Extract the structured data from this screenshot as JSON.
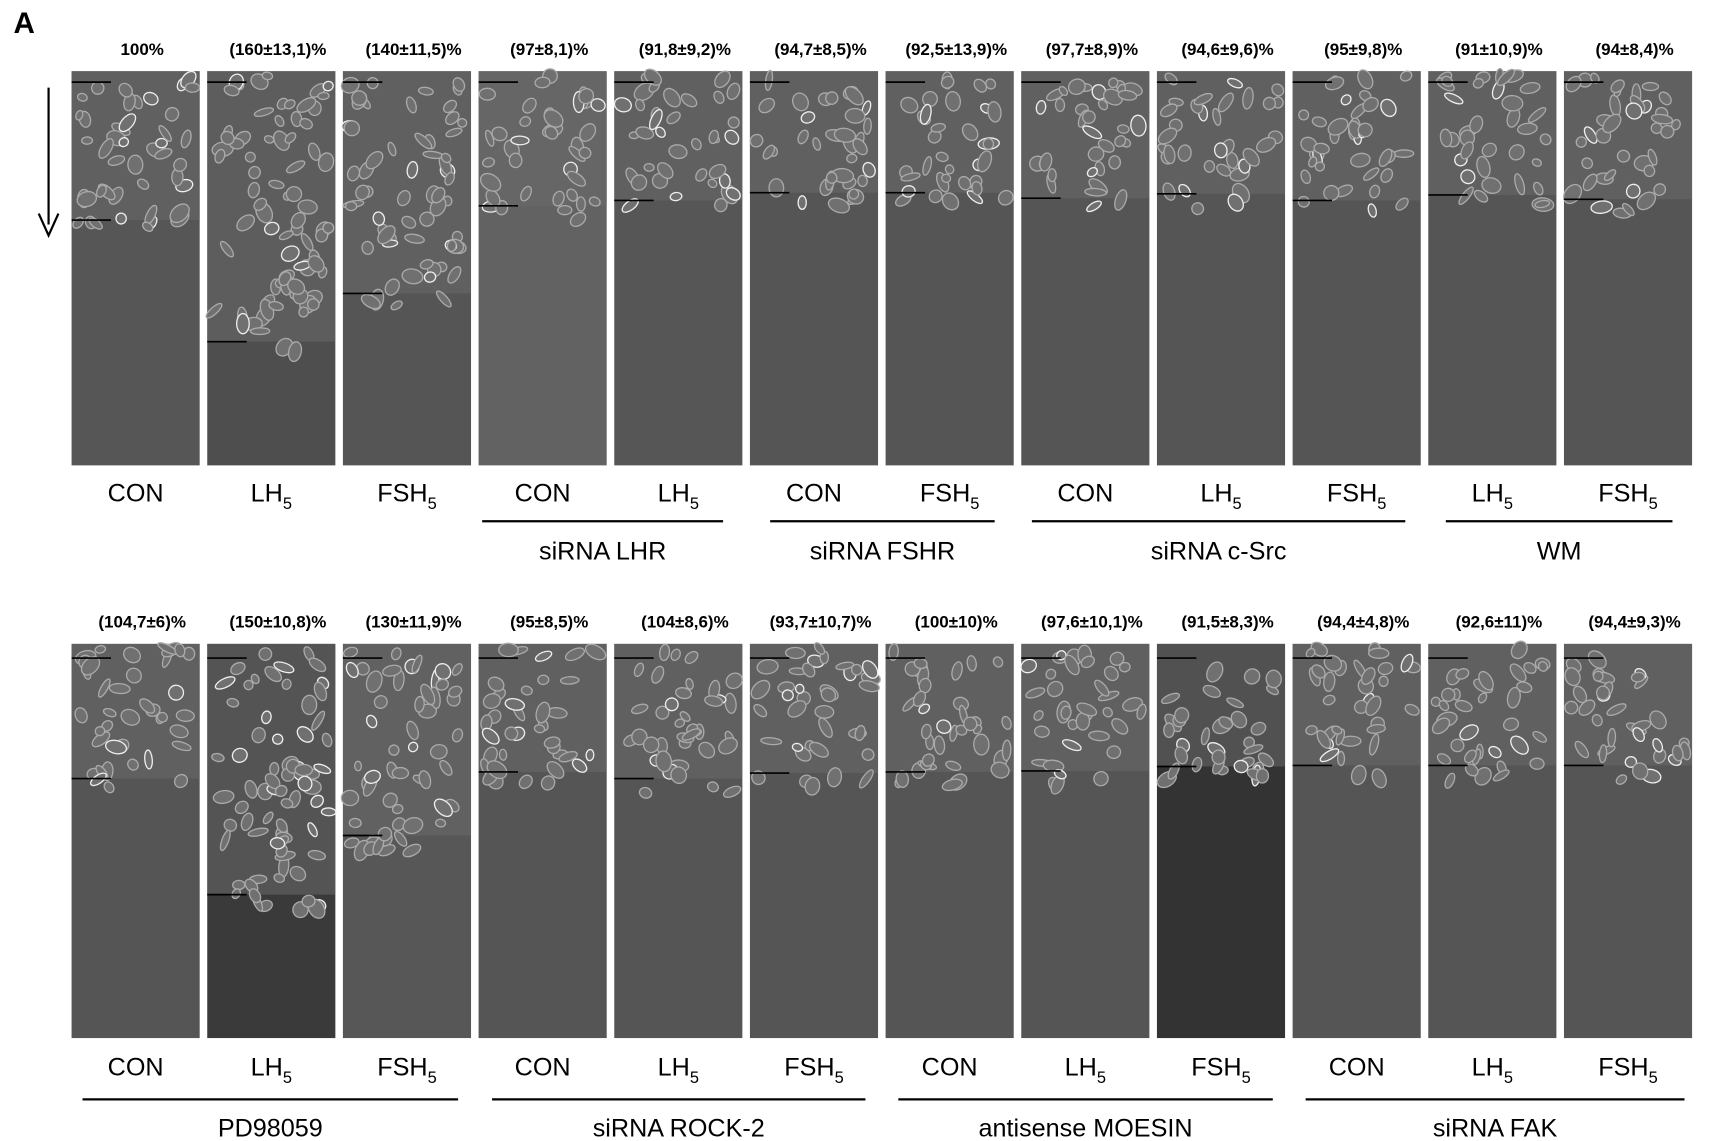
{
  "panel_label": "A",
  "rows": [
    {
      "panels": [
        {
          "percent": "100%",
          "condition": "CON"
        },
        {
          "percent": "(160±13,1)%",
          "condition": "LH",
          "subscript": "5"
        },
        {
          "percent": "(140±11,5)%",
          "condition": "FSH",
          "subscript": "5"
        },
        {
          "percent": "(97±8,1)%",
          "condition": "CON"
        },
        {
          "percent": "(91,8±9,2)%",
          "condition": "LH",
          "subscript": "5"
        },
        {
          "percent": "(94,7±8,5)%",
          "condition": "CON"
        },
        {
          "percent": "(92,5±13,9)%",
          "condition": "FSH",
          "subscript": "5"
        },
        {
          "percent": "(97,7±8,9)%",
          "condition": "CON"
        },
        {
          "percent": "(94,6±9,6)%",
          "condition": "LH",
          "subscript": "5"
        },
        {
          "percent": "(95±9,8)%",
          "condition": "FSH",
          "subscript": "5"
        },
        {
          "percent": "(91±10,9)%",
          "condition": "LH",
          "subscript": "5"
        },
        {
          "percent": "(94±8,4)%",
          "condition": "FSH",
          "subscript": "5"
        }
      ],
      "groups": [
        "siRNA LHR",
        "siRNA FSHR",
        "siRNA c-Src",
        "WM"
      ]
    },
    {
      "panels": [
        {
          "percent": "(104,7±6)%",
          "condition": "CON"
        },
        {
          "percent": "(150±10,8)%",
          "condition": "LH",
          "subscript": "5"
        },
        {
          "percent": "(130±11,9)%",
          "condition": "FSH",
          "subscript": "5"
        },
        {
          "percent": "(95±8,5)%",
          "condition": "CON"
        },
        {
          "percent": "(104±8,6)%",
          "condition": "LH",
          "subscript": "5"
        },
        {
          "percent": "(93,7±10,7)%",
          "condition": "FSH",
          "subscript": "5"
        },
        {
          "percent": "(100±10)%",
          "condition": "CON"
        },
        {
          "percent": "(97,6±10,1)%",
          "condition": "LH",
          "subscript": "5"
        },
        {
          "percent": "(91,5±8,3)%",
          "condition": "FSH",
          "subscript": "5"
        },
        {
          "percent": "(94,4±4,8)%",
          "condition": "CON"
        },
        {
          "percent": "(92,6±11)%",
          "condition": "LH",
          "subscript": "5"
        },
        {
          "percent": "(94,4±9,3)%",
          "condition": "FSH",
          "subscript": "5"
        }
      ],
      "groups": [
        "PD98059",
        "siRNA ROCK-2",
        "antisense MOESIN",
        "siRNA FAK"
      ]
    }
  ]
}
